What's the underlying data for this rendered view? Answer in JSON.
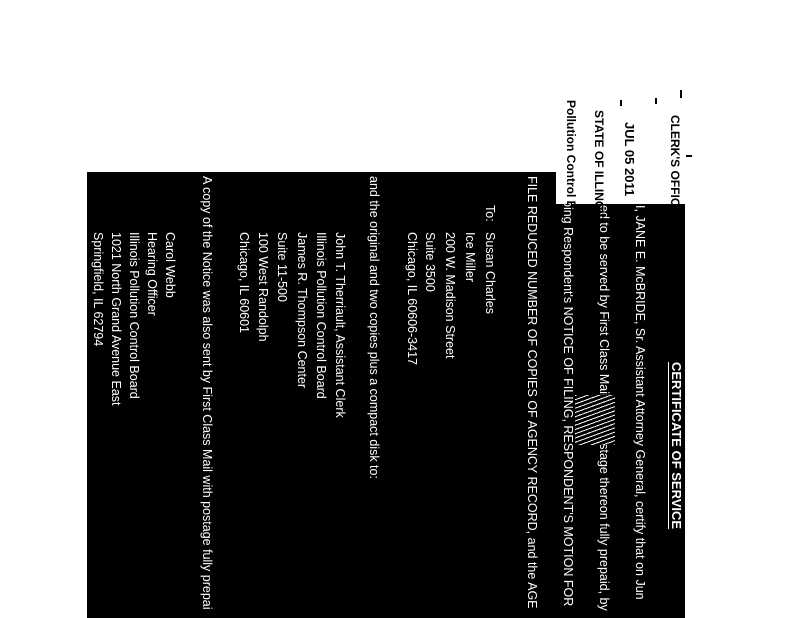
{
  "stamp": {
    "office": "CLERK'S OFFICE",
    "date": "JUL 05 2011",
    "state": "STATE OF ILLINOIS",
    "board": "Pollution Control Board"
  },
  "document": {
    "title": "CERTIFICATE OF SERVICE",
    "paragraph_lines": [
      "I, JANE E. McBRIDE, Sr. Assistant Attorney General, certify that on Jun",
      "ed to be served by First Class Mail, with postage thereon fully prepaid, by",
      "oing Respondent's NOTICE OF FILING, RESPONDENT'S MOTION FOR",
      "FILE REDUCED NUMBER OF COPIES OF AGENCY RECORD, and the AGE"
    ],
    "to_label": "To:",
    "recipient1": [
      "Susan Charles",
      "Ice Miller",
      "200 W. Madison Street",
      "Suite 3500",
      "Chicago, IL 60606-3417"
    ],
    "original_line": "and the original and two copies plus a compact disk to:",
    "recipient2": [
      "John T. Therriault, Assistant Clerk",
      "Illinois Pollution Control Board",
      "James R. Thompson Center",
      "Suite 11-500",
      "100 West Randolph",
      "Chicago, IL 60601"
    ],
    "copy_line": "A copy of the Notice was also sent by First Class Mail with postage fully prepai",
    "recipient3": [
      "Carol Webb",
      "Hearing Officer",
      "Illinois Pollution Control Board",
      "1021 North Grand Avenue East",
      "Springfield, IL 62794"
    ]
  }
}
